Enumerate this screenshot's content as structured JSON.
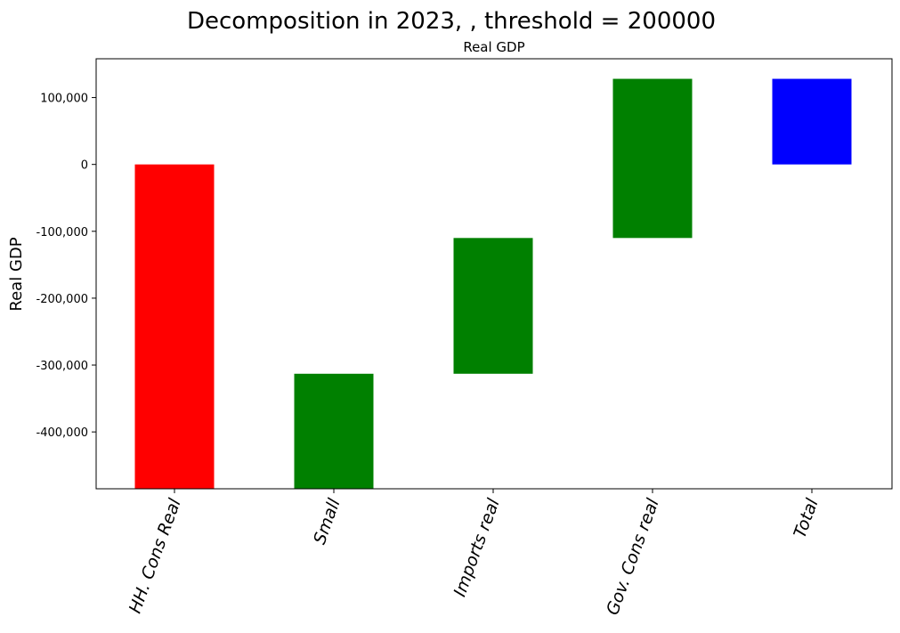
{
  "chart_data": {
    "type": "bar",
    "title": "Decomposition in 2023, , threshold = 200000",
    "subtitle": "Real GDP",
    "ylabel": "Real GDP",
    "xlabel": "",
    "ylim": [
      -485000,
      158000
    ],
    "yticks": [
      {
        "value": 100000,
        "label": "100,000"
      },
      {
        "value": 0,
        "label": "0"
      },
      {
        "value": -100000,
        "label": "-100,000"
      },
      {
        "value": -200000,
        "label": "-200,000"
      },
      {
        "value": -300000,
        "label": "-300,000"
      },
      {
        "value": -400000,
        "label": "-400,000"
      }
    ],
    "categories": [
      "HH. Cons Real",
      "Small",
      "Imports real",
      "Gov. Cons real",
      "Total"
    ],
    "bars": [
      {
        "category": "HH. Cons Real",
        "bottom": -485000,
        "top": 0,
        "color": "#ff0000"
      },
      {
        "category": "Small",
        "bottom": -485000,
        "top": -313000,
        "color": "#008000"
      },
      {
        "category": "Imports real",
        "bottom": -313000,
        "top": -110000,
        "color": "#008000"
      },
      {
        "category": "Gov. Cons real",
        "bottom": -110000,
        "top": 128000,
        "color": "#008000"
      },
      {
        "category": "Total",
        "bottom": 0,
        "top": 128000,
        "color": "#0000ff"
      }
    ],
    "grid": false,
    "legend": "none"
  }
}
